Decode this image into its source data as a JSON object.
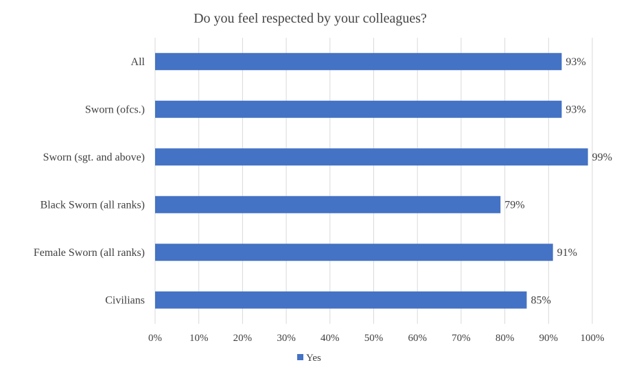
{
  "chart_data": {
    "type": "bar",
    "orientation": "horizontal",
    "title": "Do you feel respected by your colleagues?",
    "categories": [
      "All",
      "Sworn (ofcs.)",
      "Sworn (sgt. and above)",
      "Black Sworn (all ranks)",
      "Female Sworn (all ranks)",
      "Civilians"
    ],
    "series": [
      {
        "name": "Yes",
        "values": [
          93,
          93,
          99,
          79,
          91,
          85
        ],
        "data_labels": [
          "93%",
          "93%",
          "99%",
          "79%",
          "91%",
          "85%"
        ],
        "color": "#4472c4"
      }
    ],
    "xlim": [
      0,
      100
    ],
    "x_ticks": [
      0,
      10,
      20,
      30,
      40,
      50,
      60,
      70,
      80,
      90,
      100
    ],
    "x_tick_labels": [
      "0%",
      "10%",
      "20%",
      "30%",
      "40%",
      "50%",
      "60%",
      "70%",
      "80%",
      "90%",
      "100%"
    ],
    "grid": "vertical",
    "legend": "bottom",
    "xlabel": "",
    "ylabel": ""
  }
}
